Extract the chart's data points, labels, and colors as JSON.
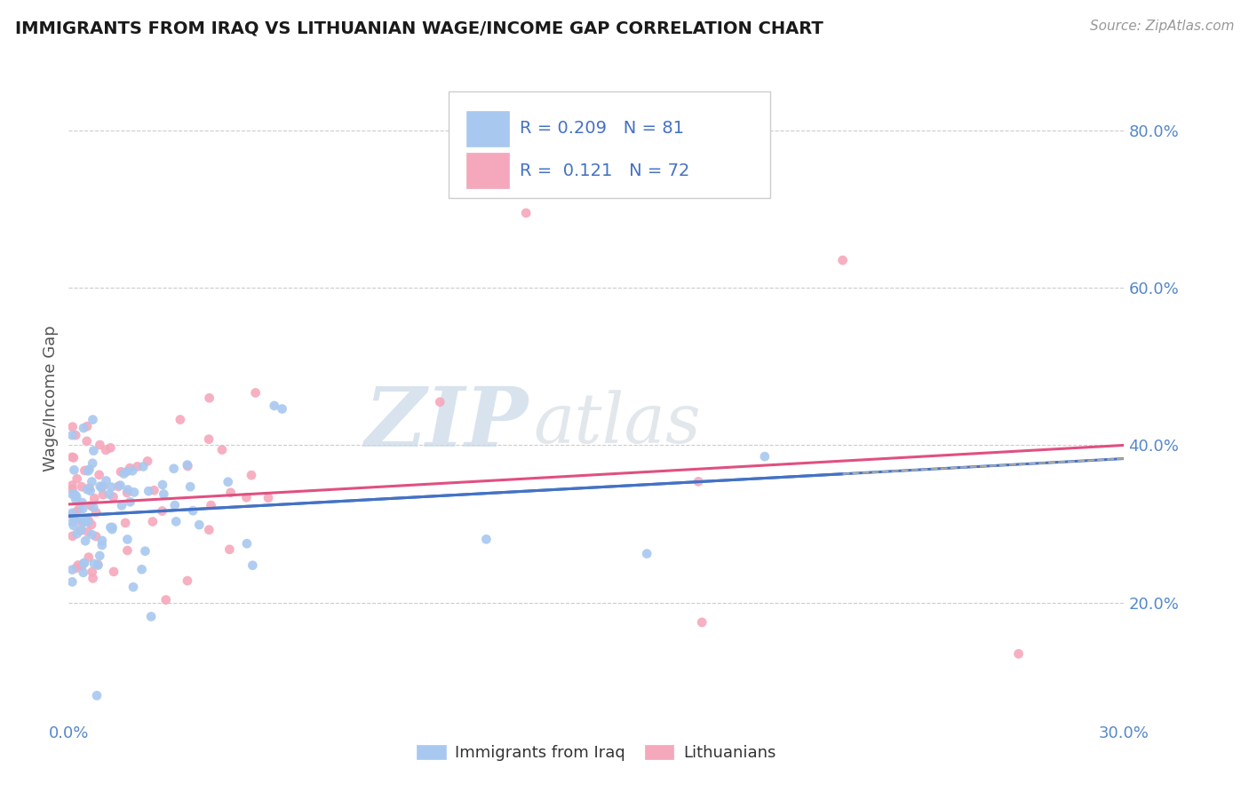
{
  "title": "IMMIGRANTS FROM IRAQ VS LITHUANIAN WAGE/INCOME GAP CORRELATION CHART",
  "source": "Source: ZipAtlas.com",
  "ylabel": "Wage/Income Gap",
  "R1": 0.209,
  "N1": 81,
  "R2": 0.121,
  "N2": 72,
  "color_blue": "#A8C8F0",
  "color_pink": "#F5A8BC",
  "line_color_blue": "#4472C4",
  "line_color_pink": "#E05080",
  "xmin": 0.0,
  "xmax": 0.3,
  "ymin": 0.05,
  "ymax": 0.87,
  "legend_label_1": "Immigrants from Iraq",
  "legend_label_2": "Lithuanians",
  "watermark_zip": "ZIP",
  "watermark_atlas": "atlas",
  "blue_intercept": 0.305,
  "blue_slope": 0.4,
  "pink_intercept": 0.33,
  "pink_slope": 0.35,
  "blue_seed": 77,
  "pink_seed": 33
}
